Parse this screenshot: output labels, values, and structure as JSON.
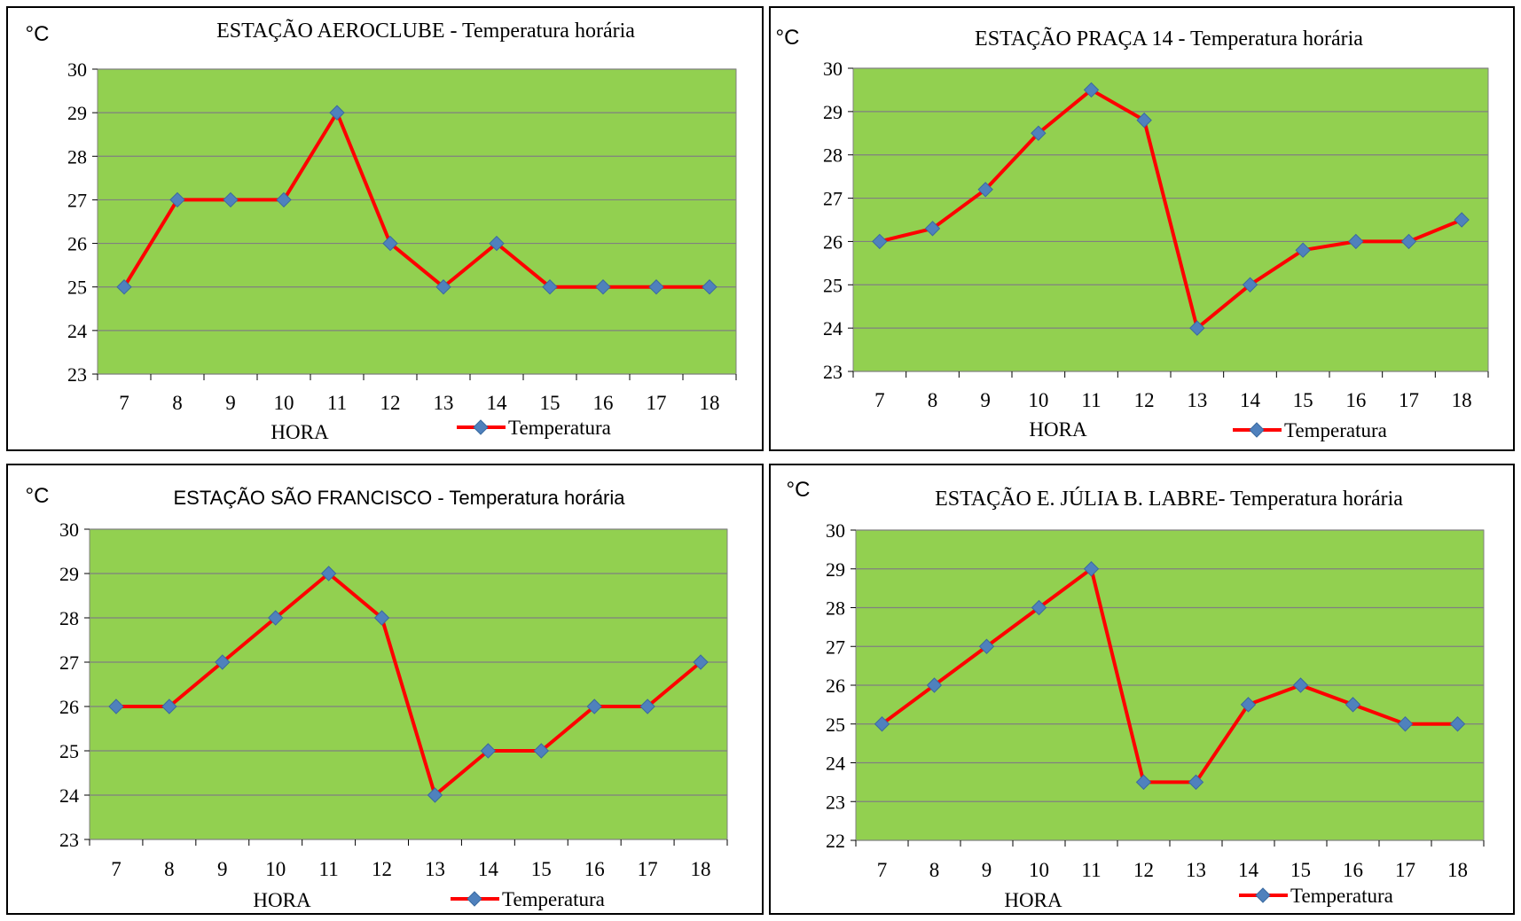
{
  "colors": {
    "plot_bg": "#92d050",
    "line": "#ff0000",
    "marker": "#4f81bd",
    "grid": "#808080",
    "frame": "#000000"
  },
  "chart_data": [
    {
      "type": "line",
      "title": "ESTAÇÃO AEROCLUBE - Temperatura horária",
      "title_font": "serif",
      "ylabel": "°C",
      "xlabel": "HORA",
      "categories": [
        "7",
        "8",
        "9",
        "10",
        "11",
        "12",
        "13",
        "14",
        "15",
        "16",
        "17",
        "18"
      ],
      "ylim": [
        23,
        30
      ],
      "yticks": [
        23,
        24,
        25,
        26,
        27,
        28,
        29,
        30
      ],
      "series": [
        {
          "name": "Temperatura",
          "values": [
            25,
            27,
            27,
            27,
            29,
            26,
            25,
            26,
            25,
            25,
            25,
            25
          ]
        }
      ],
      "grid": true,
      "legend": "bottom-right"
    },
    {
      "type": "line",
      "title": "ESTAÇÃO PRAÇA 14 - Temperatura horária",
      "title_font": "serif",
      "ylabel": "°C",
      "xlabel": "HORA",
      "categories": [
        "7",
        "8",
        "9",
        "10",
        "11",
        "12",
        "13",
        "14",
        "15",
        "16",
        "17",
        "18"
      ],
      "ylim": [
        23,
        30
      ],
      "yticks": [
        23,
        24,
        25,
        26,
        27,
        28,
        29,
        30
      ],
      "series": [
        {
          "name": "Temperatura",
          "values": [
            26,
            26.3,
            27.2,
            28.5,
            29.5,
            28.8,
            24,
            25,
            25.8,
            26,
            26,
            26.5
          ]
        }
      ],
      "grid": true,
      "legend": "bottom-right"
    },
    {
      "type": "line",
      "title": "ESTAÇÃO SÃO FRANCISCO - Temperatura horária",
      "title_font": "sans",
      "ylabel": "°C",
      "xlabel": "HORA",
      "categories": [
        "7",
        "8",
        "9",
        "10",
        "11",
        "12",
        "13",
        "14",
        "15",
        "16",
        "17",
        "18"
      ],
      "ylim": [
        23,
        30
      ],
      "yticks": [
        23,
        24,
        25,
        26,
        27,
        28,
        29,
        30
      ],
      "series": [
        {
          "name": "Temperatura",
          "values": [
            26,
            26,
            27,
            28,
            29,
            28,
            24,
            25,
            25,
            26,
            26,
            27
          ]
        }
      ],
      "grid": true,
      "legend": "bottom-right"
    },
    {
      "type": "line",
      "title": "ESTAÇÃO E. JÚLIA B. LABRE- Temperatura horária",
      "title_font": "serif",
      "ylabel": "°C",
      "xlabel": "HORA",
      "categories": [
        "7",
        "8",
        "9",
        "10",
        "11",
        "12",
        "13",
        "14",
        "15",
        "16",
        "17",
        "18"
      ],
      "ylim": [
        22,
        30
      ],
      "yticks": [
        22,
        23,
        24,
        25,
        26,
        27,
        28,
        29,
        30
      ],
      "series": [
        {
          "name": "Temperatura",
          "values": [
            25,
            26,
            27,
            28,
            29,
            23.5,
            23.5,
            25.5,
            26,
            25.5,
            25,
            25
          ]
        }
      ],
      "grid": true,
      "legend": "bottom-right"
    }
  ]
}
